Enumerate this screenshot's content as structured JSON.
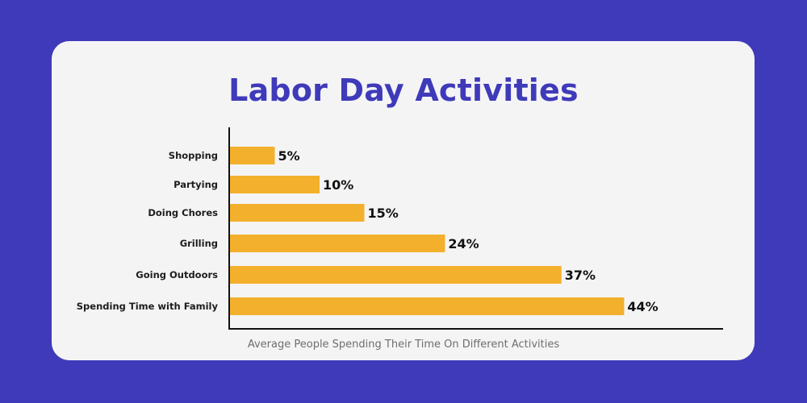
{
  "chart_data": {
    "type": "bar",
    "orientation": "horizontal",
    "title": "Labor Day Activities",
    "xlabel": "Average People Spending Their Time On Different Activities",
    "ylabel": "",
    "categories": [
      "Shopping",
      "Partying",
      "Doing Chores",
      "Grilling",
      "Going Outdoors",
      "Spending Time with Family"
    ],
    "values": [
      5,
      10,
      15,
      24,
      37,
      44
    ],
    "value_labels": [
      "5%",
      "10%",
      "15%",
      "24%",
      "37%",
      "44%"
    ],
    "unit": "%",
    "grid": false,
    "legend": "none",
    "colors": {
      "bar": "#f3b02c",
      "title": "#3f3ab9",
      "background": "#3f3ab9",
      "card": "#f4f4f5",
      "axis": "#111111"
    }
  }
}
